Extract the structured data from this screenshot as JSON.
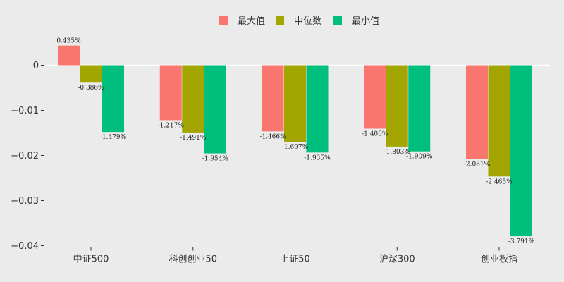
{
  "chart_data": {
    "type": "bar",
    "categories": [
      "中证500",
      "科创创业50",
      "上证50",
      "沪深300",
      "创业板指"
    ],
    "series": [
      {
        "name": "最大值",
        "color": "#f8766d",
        "values": [
          0.00435,
          -0.01217,
          -0.01466,
          -0.01406,
          -0.02081
        ],
        "labels": [
          "0.435%",
          "-1.217%",
          "-1.466%",
          "-1.406%",
          "-2.081%"
        ]
      },
      {
        "name": "中位数",
        "color": "#a3a500",
        "values": [
          -0.00386,
          -0.01491,
          -0.01697,
          -0.01803,
          -0.02465
        ],
        "labels": [
          "-0.386%",
          "-1.491%",
          "-1.697%",
          "-1.803%",
          "-2.465%"
        ]
      },
      {
        "name": "最小值",
        "color": "#00bf7d",
        "values": [
          -0.01479,
          -0.01954,
          -0.01935,
          -0.01909,
          -0.03791
        ],
        "labels": [
          "-1.479%",
          "-1.954%",
          "-1.935%",
          "-1.909%",
          "-3.791%"
        ]
      }
    ],
    "yticks": [
      0,
      -0.01,
      -0.02,
      -0.03,
      -0.04
    ],
    "ytick_labels": [
      "0",
      "−0.01",
      "−0.02",
      "−0.03",
      "−0.04"
    ],
    "ylim": [
      -0.04,
      0.0055
    ],
    "legend_position": "top-center",
    "grid": false
  }
}
